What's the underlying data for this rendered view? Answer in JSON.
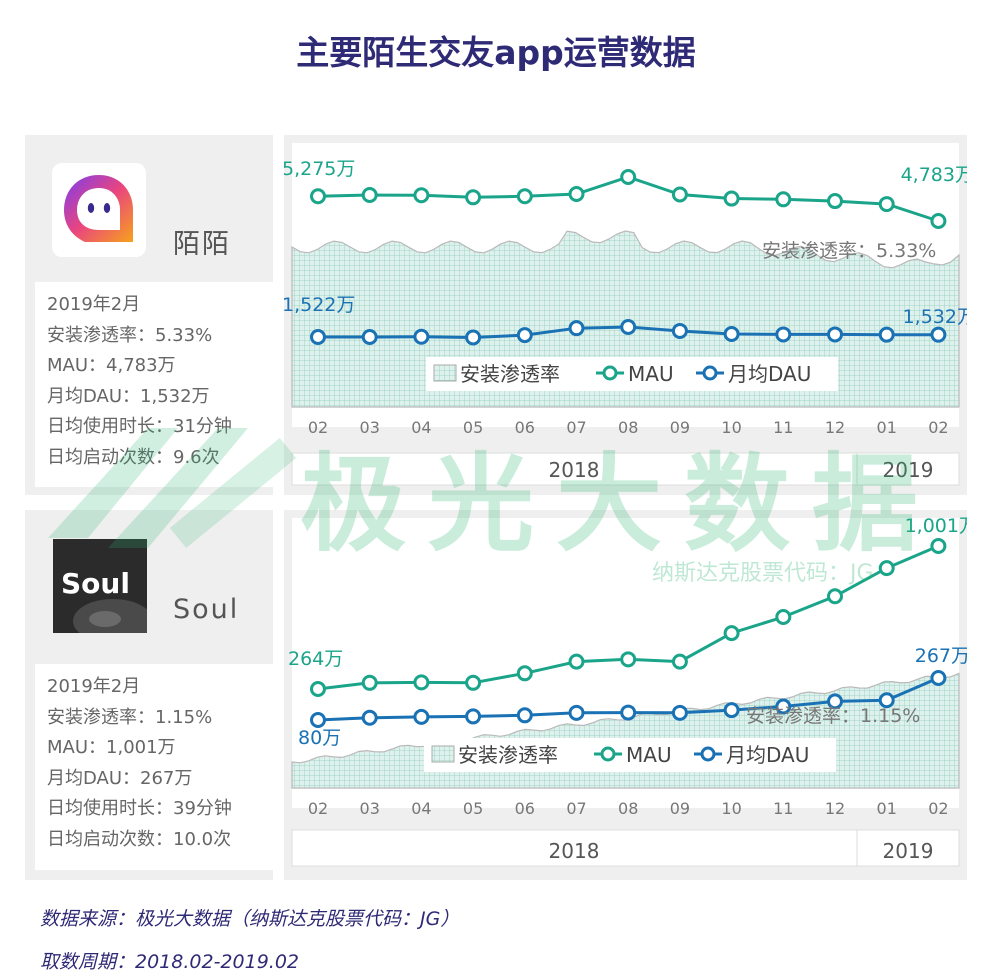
{
  "page_title": "主要陌生交友app运营数据",
  "watermark": {
    "text": "极光大数据",
    "sub": "纳斯达克股票代码：JG"
  },
  "apps": [
    {
      "name": "陌陌",
      "info": [
        "2019年2月",
        "安装渗透率：5.33%",
        "MAU：4,783万",
        "月均DAU：1,532万",
        "日均使用时长：31分钟",
        "日均启动次数：9.6次"
      ]
    },
    {
      "name": "Soul",
      "logo_text": "Soul",
      "info": [
        "2019年2月",
        "安装渗透率：1.15%",
        "MAU：1,001万",
        "月均DAU：267万",
        "日均使用时长：39分钟",
        "日均启动次数：10.0次"
      ]
    }
  ],
  "chart_data": [
    {
      "type": "line",
      "title": "陌陌",
      "categories": [
        "02",
        "03",
        "04",
        "05",
        "06",
        "07",
        "08",
        "09",
        "10",
        "11",
        "12",
        "01",
        "02"
      ],
      "year_labels": [
        "2018",
        "2019"
      ],
      "series": [
        {
          "name": "MAU",
          "unit": "万",
          "color": "#1aa58a",
          "values": [
            5275,
            5300,
            5295,
            5255,
            5275,
            5320,
            5380,
            5310,
            5230,
            5215,
            5180,
            5120,
            4783
          ]
        },
        {
          "name": "月均DAU",
          "unit": "万",
          "color": "#1a72b4",
          "values": [
            1522,
            1522,
            1523,
            1520,
            1530,
            1560,
            1565,
            1548,
            1535,
            1533,
            1533,
            1532,
            1532
          ]
        }
      ],
      "area_series": {
        "name": "安装渗透率",
        "end_value": 5.33,
        "unit": "%"
      },
      "labels": {
        "mau_start": "5,275万",
        "mau_end": "4,783万",
        "dau_start": "1,522万",
        "dau_end": "1,532万",
        "area": "安装渗透率：5.33%"
      },
      "legend": [
        "安装渗透率",
        "MAU",
        "月均DAU"
      ]
    },
    {
      "type": "line",
      "title": "Soul",
      "categories": [
        "02",
        "03",
        "04",
        "05",
        "06",
        "07",
        "08",
        "09",
        "10",
        "11",
        "12",
        "01",
        "02"
      ],
      "year_labels": [
        "2018",
        "2019"
      ],
      "series": [
        {
          "name": "MAU",
          "unit": "万",
          "color": "#1aa58a",
          "values": [
            264,
            296,
            298,
            296,
            345,
            405,
            417,
            405,
            552,
            635,
            742,
            887,
            1001
          ]
        },
        {
          "name": "月均DAU",
          "unit": "万",
          "color": "#1a72b4",
          "values": [
            80,
            90,
            94,
            96,
            101,
            112,
            113,
            112,
            124,
            140,
            163,
            168,
            267
          ]
        }
      ],
      "area_series": {
        "name": "安装渗透率",
        "end_value": 1.15,
        "unit": "%"
      },
      "labels": {
        "mau_start": "264万",
        "mau_end": "1,001万",
        "dau_start": "80万",
        "dau_end": "267万",
        "area": "安装渗透率：1.15%"
      },
      "legend": [
        "安装渗透率",
        "MAU",
        "月均DAU"
      ]
    }
  ],
  "footer": {
    "source": "数据来源：极光大数据（纳斯达克股票代码：JG）",
    "period": "取数周期：2018.02-2019.02"
  }
}
